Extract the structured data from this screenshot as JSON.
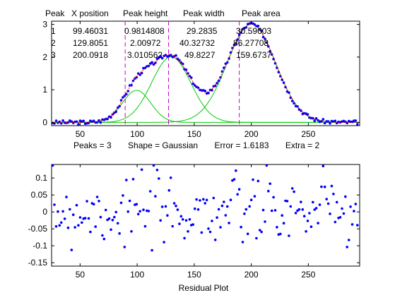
{
  "figure": {
    "header": [
      "Peak",
      "X position",
      "Peak height",
      "Peak width",
      "Peak area"
    ],
    "peaks": [
      [
        "1",
        "99.46031",
        "0.9814808",
        "29.2835",
        "30.59603"
      ],
      [
        "2",
        "129.8051",
        "2.00972",
        "40.32732",
        "86.27708"
      ],
      [
        "3",
        "200.0918",
        "3.010562",
        "49.8227",
        "159.6737"
      ]
    ],
    "status": "Peaks = 3       Shape = Gaussian       Error = 1.6183       Extra = 2",
    "residual_label": "Residual Plot"
  },
  "colors": {
    "data": "#0000ff",
    "fit": "#ff0000",
    "components": "#00cc00",
    "markers": "#cc00cc",
    "axes": "#000000"
  },
  "chart_data": [
    {
      "type": "scatter",
      "title": "",
      "xlim": [
        25,
        295
      ],
      "ylim": [
        -0.1,
        3.1
      ],
      "xticks": [
        50,
        100,
        150,
        200,
        250
      ],
      "yticks": [
        0,
        1,
        2,
        3
      ],
      "grid": false,
      "series": [
        {
          "kind": "points",
          "x_start": 26,
          "x_end": 294,
          "x_step": 1.5,
          "description": "data"
        },
        {
          "kind": "line",
          "role": "fit",
          "peaks": [
            [
              99.46031,
              0.9814808,
              29.2835
            ],
            [
              129.8051,
              2.00972,
              40.32732
            ],
            [
              200.0918,
              3.010562,
              49.8227
            ]
          ]
        },
        {
          "kind": "line",
          "role": "components",
          "peaks": [
            [
              99.46031,
              0.9814808,
              29.2835
            ],
            [
              129.8051,
              2.00972,
              40.32732
            ],
            [
              200.0918,
              3.010562,
              49.8227
            ]
          ]
        }
      ],
      "markers_x": [
        89.5,
        127.5,
        189.5
      ]
    },
    {
      "type": "scatter",
      "xlabel": "Residual Plot",
      "xlim": [
        25,
        295
      ],
      "ylim": [
        -0.16,
        0.14
      ],
      "xticks": [
        50,
        100,
        150,
        200,
        250
      ],
      "yticks": [
        -0.15,
        -0.1,
        -0.05,
        0,
        0.05,
        0.1
      ],
      "ytick_labels": [
        "-0.15",
        "-0.1",
        "-0.05",
        "0",
        "0.05",
        "0.1"
      ],
      "grid": false,
      "residual_seed": 7,
      "residual_std": 0.055
    }
  ]
}
